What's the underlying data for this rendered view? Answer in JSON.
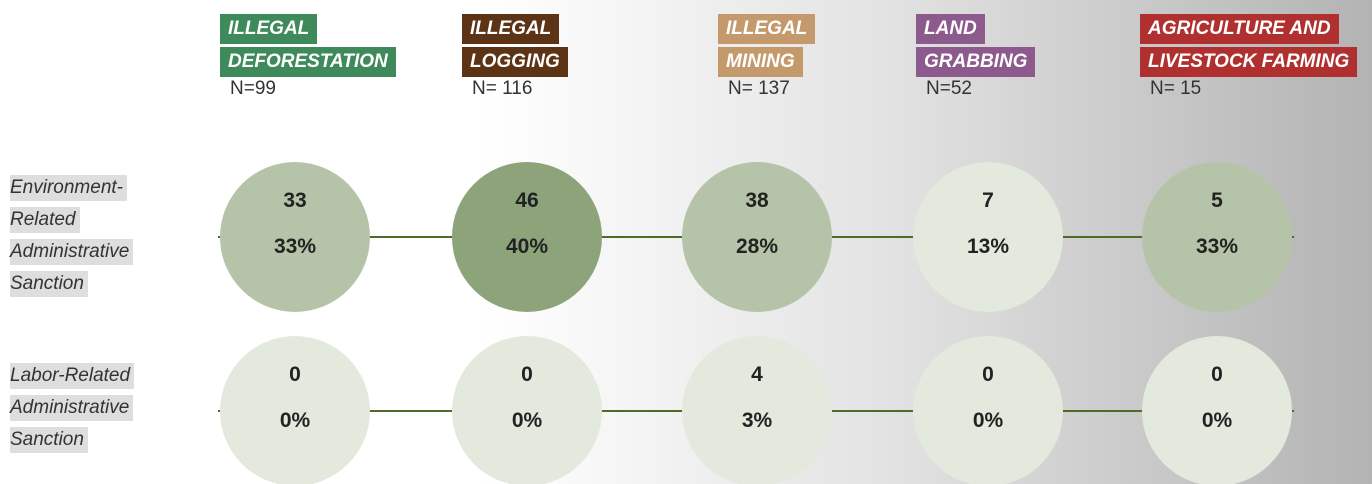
{
  "columns": [
    {
      "label": [
        "ILLEGAL",
        "DEFORESTATION"
      ],
      "n": "N=99",
      "color": "#3f8a5a"
    },
    {
      "label": [
        "ILLEGAL",
        "LOGGING"
      ],
      "n": "N= 116",
      "color": "#5c3315"
    },
    {
      "label": [
        "ILLEGAL",
        "MINING"
      ],
      "n": "N= 137",
      "color": "#c49a6c"
    },
    {
      "label": [
        "LAND",
        "GRABBING"
      ],
      "n": "N=52",
      "color": "#8c5a8c"
    },
    {
      "label": [
        "AGRICULTURE AND",
        "LIVESTOCK FARMING"
      ],
      "n": "N= 15",
      "color": "#b03030"
    }
  ],
  "rows": [
    {
      "label": [
        "Environment-",
        "Related",
        "Administrative",
        "Sanction"
      ],
      "cells": [
        {
          "count": 33,
          "percent": "33%",
          "color": "#b5c4a8"
        },
        {
          "count": 46,
          "percent": "40%",
          "color": "#8da37a"
        },
        {
          "count": 38,
          "percent": "28%",
          "color": "#b5c4a8"
        },
        {
          "count": 7,
          "percent": "13%",
          "color": "#e3e9dc"
        },
        {
          "count": 5,
          "percent": "33%",
          "color": "#b5c4a8"
        }
      ]
    },
    {
      "label": [
        "Labor-Related",
        "Administrative",
        "Sanction"
      ],
      "cells": [
        {
          "count": 0,
          "percent": "0%",
          "color": "#e3e9dc"
        },
        {
          "count": 0,
          "percent": "0%",
          "color": "#e3e9dc"
        },
        {
          "count": 4,
          "percent": "3%",
          "color": "#e3e9dc"
        },
        {
          "count": 0,
          "percent": "0%",
          "color": "#e3e9dc"
        },
        {
          "count": 0,
          "percent": "0%",
          "color": "#e3e9dc"
        }
      ]
    }
  ]
}
